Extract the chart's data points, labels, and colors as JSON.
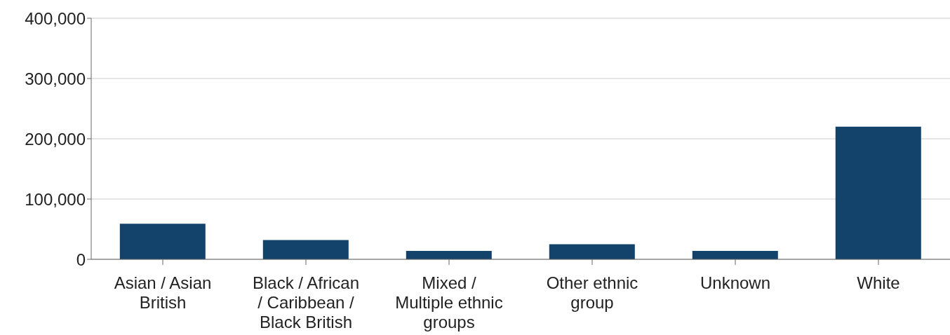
{
  "chart_data": {
    "type": "bar",
    "categories": [
      "Asian / Asian British",
      "Black / African / Caribbean / Black British",
      "Mixed / Multiple ethnic groups",
      "Other ethnic group",
      "Unknown",
      "White"
    ],
    "values": [
      59000,
      32000,
      14000,
      25000,
      14000,
      220000
    ],
    "color": "#13426b",
    "ylim": [
      0,
      400000
    ],
    "yticks": [
      {
        "value": 0,
        "label": "0"
      },
      {
        "value": 100000,
        "label": "100,000"
      },
      {
        "value": 200000,
        "label": "200,000"
      },
      {
        "value": 300000,
        "label": "300,000"
      },
      {
        "value": 400000,
        "label": "400,000"
      }
    ],
    "grid": "y"
  }
}
